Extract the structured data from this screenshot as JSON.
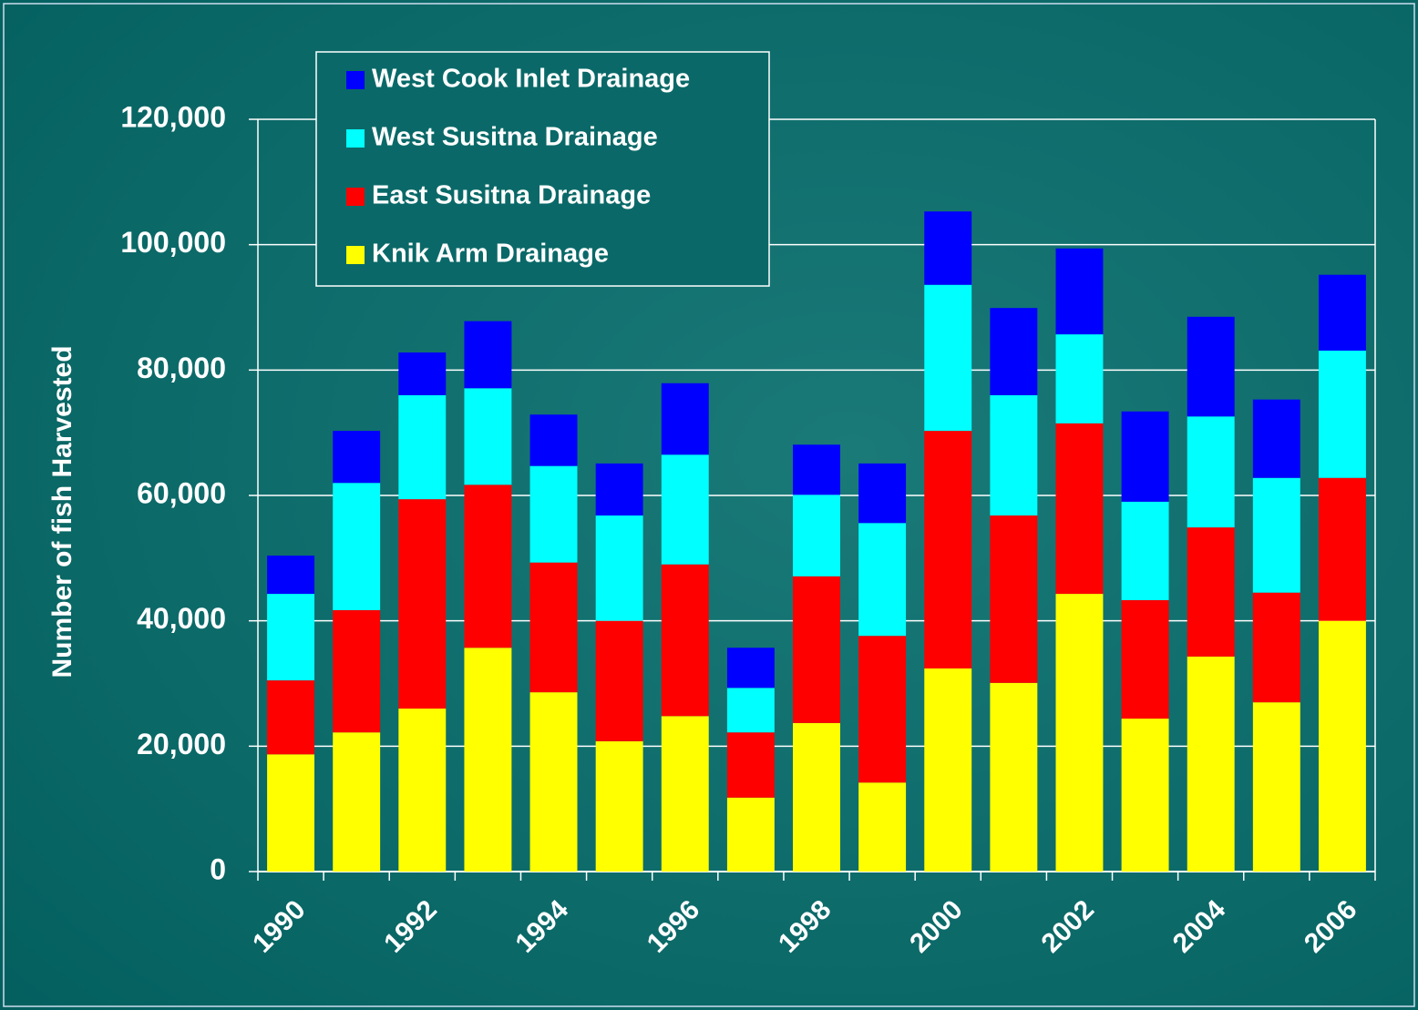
{
  "chart_data": {
    "type": "stacked_bar",
    "y_label": "Number of fish Harvested",
    "categories": [
      "1990",
      null,
      "1992",
      null,
      "1994",
      null,
      "1996",
      null,
      "1998",
      null,
      "2000",
      null,
      "2002",
      null,
      "2004",
      null,
      "2006"
    ],
    "series": [
      {
        "name": "Knik Arm Drainage",
        "color": "#ffff00",
        "values": [
          18700,
          22200,
          26000,
          35700,
          28600,
          20800,
          24800,
          11800,
          23700,
          14200,
          32400,
          30100,
          44300,
          24400,
          34300,
          27000,
          40000
        ]
      },
      {
        "name": "East Susitna Drainage",
        "color": "#ff0000",
        "values": [
          11800,
          19500,
          33400,
          26000,
          20700,
          19200,
          24200,
          10400,
          23400,
          23400,
          37900,
          26700,
          27200,
          18900,
          20600,
          17500,
          22800
        ]
      },
      {
        "name": "West Susitna Drainage",
        "color": "#00ffff",
        "values": [
          13800,
          20300,
          16600,
          15400,
          15400,
          16800,
          17500,
          7100,
          13000,
          18000,
          23300,
          19200,
          14200,
          15700,
          17700,
          18300,
          20300
        ]
      },
      {
        "name": "West Cook Inlet Drainage",
        "color": "#0000ff",
        "values": [
          6100,
          8300,
          6800,
          10700,
          8200,
          8300,
          11400,
          6400,
          8000,
          9500,
          11700,
          13900,
          13700,
          14400,
          15900,
          12500,
          12100
        ]
      }
    ],
    "ylim": [
      0,
      120000
    ],
    "yticks": [
      0,
      {
        "value": 20000,
        "label": "20,000"
      },
      {
        "value": 40000,
        "label": "40,000"
      },
      {
        "value": 60000,
        "label": "60,000"
      },
      {
        "value": 80000,
        "label": "80,000"
      },
      {
        "value": 100000,
        "label": "100,000"
      },
      {
        "value": 120000,
        "label": "120,000"
      }
    ],
    "grid": true,
    "legend": "top-left"
  }
}
